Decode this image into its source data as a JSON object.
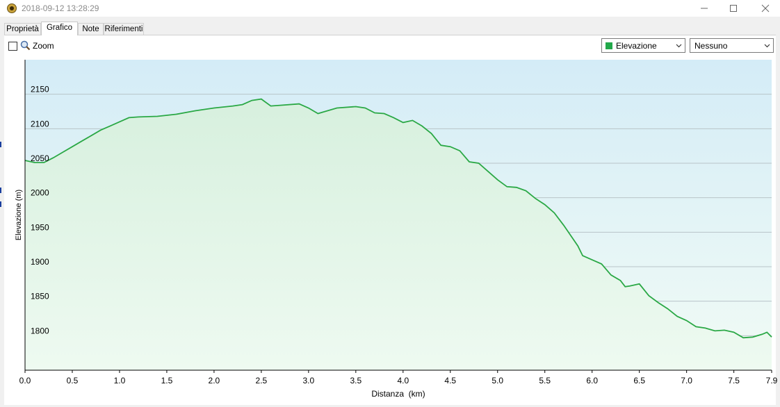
{
  "window": {
    "title": "2018-09-12 13:28:29",
    "icon": "app-compass-icon"
  },
  "tabs": [
    {
      "label": "Proprietà",
      "active": false
    },
    {
      "label": "Grafico",
      "active": true
    },
    {
      "label": "Note",
      "active": false
    },
    {
      "label": "Riferimenti",
      "active": false
    }
  ],
  "toolbar": {
    "zoom_label": "Zoom",
    "zoom_checked": false,
    "series_select": {
      "value": "Elevazione",
      "swatch_color": "#22a84a"
    },
    "compare_select": {
      "value": "Nessuno"
    }
  },
  "chart_data": {
    "type": "area",
    "title": "",
    "xlabel": "Distanza  (km)",
    "ylabel": "Elevazione (m)",
    "xlim": [
      0,
      7.9
    ],
    "ylim": [
      1750,
      2200
    ],
    "xticks": [
      "0.0",
      "0.5",
      "1.0",
      "1.5",
      "2.0",
      "2.5",
      "3.0",
      "3.5",
      "4.0",
      "4.5",
      "5.0",
      "5.5",
      "6.0",
      "6.5",
      "7.0",
      "7.5",
      "7.9"
    ],
    "yticks": [
      "1800",
      "1850",
      "1900",
      "1950",
      "2000",
      "2050",
      "2100",
      "2150"
    ],
    "grid": "horizontal",
    "line_color": "#2aa845",
    "series": [
      {
        "name": "Elevazione",
        "x": [
          0,
          0.1,
          0.2,
          0.3,
          0.4,
          0.5,
          0.6,
          0.7,
          0.8,
          0.9,
          1.0,
          1.1,
          1.2,
          1.4,
          1.6,
          1.8,
          2.0,
          2.2,
          2.3,
          2.4,
          2.5,
          2.6,
          2.7,
          2.9,
          3.0,
          3.1,
          3.15,
          3.3,
          3.5,
          3.6,
          3.7,
          3.8,
          3.9,
          4.0,
          4.1,
          4.2,
          4.3,
          4.4,
          4.5,
          4.6,
          4.7,
          4.8,
          4.9,
          5.0,
          5.1,
          5.2,
          5.3,
          5.4,
          5.5,
          5.6,
          5.7,
          5.8,
          5.85,
          5.9,
          6.0,
          6.1,
          6.2,
          6.3,
          6.35,
          6.4,
          6.5,
          6.6,
          6.7,
          6.8,
          6.9,
          7.0,
          7.1,
          7.2,
          7.3,
          7.4,
          7.5,
          7.6,
          7.7,
          7.8,
          7.85,
          7.9
        ],
        "y": [
          2054,
          2051,
          2051,
          2058,
          2066,
          2074,
          2082,
          2090,
          2098,
          2104,
          2110,
          2116,
          2117,
          2118,
          2121,
          2126,
          2130,
          2133,
          2135,
          2141,
          2143,
          2133,
          2134,
          2136,
          2130,
          2122,
          2124,
          2130,
          2132,
          2130,
          2123,
          2122,
          2116,
          2109,
          2112,
          2104,
          2093,
          2076,
          2074,
          2068,
          2052,
          2050,
          2038,
          2026,
          2016,
          2015,
          2010,
          1999,
          1990,
          1978,
          1960,
          1940,
          1930,
          1916,
          1910,
          1904,
          1888,
          1880,
          1871,
          1872,
          1875,
          1858,
          1848,
          1839,
          1828,
          1822,
          1813,
          1811,
          1807,
          1808,
          1805,
          1797,
          1798,
          1802,
          1805,
          1798
        ]
      }
    ]
  }
}
